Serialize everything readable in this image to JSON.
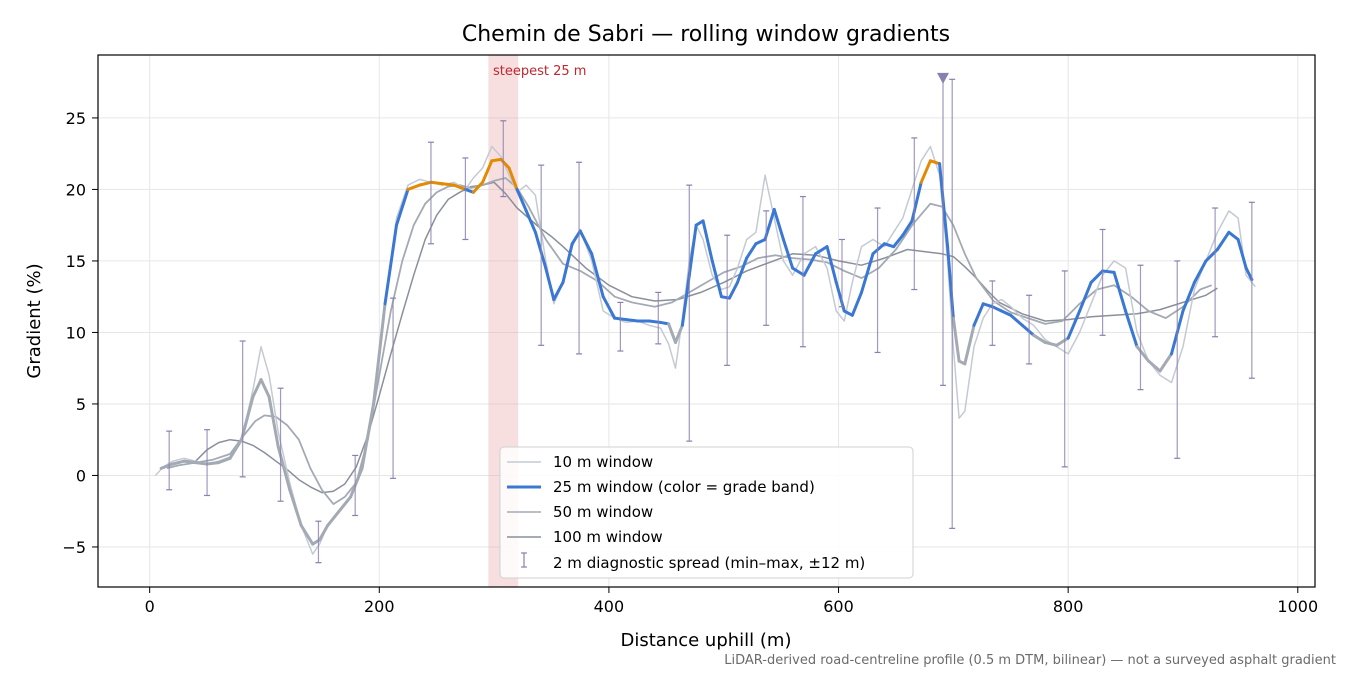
{
  "chart_data": {
    "type": "line",
    "title": "Chemin de Sabri — rolling window gradients",
    "xlabel": "Distance uphill (m)",
    "ylabel": "Gradient (%)",
    "xlim": [
      -45,
      1015
    ],
    "ylim": [
      -7.8,
      29.4
    ],
    "xticks": [
      0,
      200,
      400,
      600,
      800,
      1000
    ],
    "yticks": [
      -5,
      0,
      5,
      10,
      15,
      20,
      25
    ],
    "ytick_labels": [
      "−5",
      "0",
      "5",
      "10",
      "15",
      "20",
      "25"
    ],
    "grid": true,
    "legend_position": "lower-center",
    "footnote": "LiDAR-derived road-centreline profile (0.5 m DTM, bilinear) — not a surveyed asphalt gradient",
    "highlight": {
      "label": "steepest 25 m",
      "x_range": [
        295,
        321
      ],
      "color": "#e8a0a3"
    },
    "off_scale_marker": {
      "x": 691,
      "y": 27.8,
      "color": "#8a7fae"
    },
    "grade_band_colors": {
      "under_10": "#a3aab4",
      "10_to_20": "#3a78d4",
      "over_20": "#e28a00"
    },
    "series": [
      {
        "name": "10 m window",
        "color": "#c4cad3",
        "width": 1.5,
        "x": [
          5,
          12,
          20,
          30,
          40,
          50,
          60,
          70,
          80,
          90,
          97,
          104,
          112,
          122,
          132,
          142,
          148,
          155,
          165,
          175,
          185,
          195,
          205,
          215,
          225,
          235,
          245,
          255,
          265,
          275,
          282,
          290,
          298,
          306,
          313,
          320,
          328,
          336,
          345,
          352,
          360,
          368,
          375,
          385,
          395,
          405,
          415,
          425,
          435,
          445,
          452,
          458,
          464,
          470,
          476,
          482,
          490,
          498,
          505,
          512,
          520,
          528,
          536,
          544,
          552,
          560,
          570,
          580,
          590,
          598,
          605,
          612,
          620,
          630,
          640,
          648,
          656,
          664,
          672,
          680,
          688,
          695,
          700,
          705,
          710,
          718,
          726,
          734,
          742,
          750,
          760,
          770,
          780,
          790,
          800,
          810,
          820,
          830,
          840,
          850,
          860,
          870,
          880,
          890,
          900,
          910,
          920,
          930,
          940,
          948,
          955,
          963
        ],
        "y": [
          0,
          0.6,
          1,
          1.2,
          1,
          0.8,
          1.0,
          1.3,
          2.5,
          6,
          9.0,
          7,
          3,
          -0.5,
          -3.5,
          -5.5,
          -4.8,
          -3.5,
          -2.5,
          -1.5,
          0.5,
          5,
          12,
          18,
          20.3,
          20.7,
          20.5,
          20.3,
          20.5,
          20,
          20.8,
          21.5,
          23,
          22.3,
          21,
          19.8,
          20.3,
          19.6,
          15,
          12,
          13.5,
          16,
          17.2,
          15,
          11.5,
          11,
          10.7,
          10.8,
          10.5,
          10.3,
          9.2,
          7.5,
          11,
          15,
          17.5,
          16.5,
          14,
          13,
          13.2,
          14.5,
          16.5,
          17,
          21,
          18,
          15,
          14,
          15.5,
          16,
          14.5,
          11.5,
          10.8,
          13.5,
          16,
          16.5,
          16,
          17,
          18,
          20,
          22,
          23,
          21,
          15,
          9,
          4,
          4.5,
          9,
          11,
          12,
          12.3,
          11.8,
          11,
          10.5,
          9.5,
          9,
          8.5,
          10,
          12,
          14,
          15,
          14.5,
          10,
          8,
          7,
          6.5,
          9,
          13,
          15,
          17,
          18.5,
          18,
          14,
          13.2
        ],
        "opacity": 1
      },
      {
        "name": "25 m window (color = grade band)",
        "color": "#3a78d4",
        "width": 3,
        "x": [
          10,
          20,
          30,
          40,
          50,
          60,
          70,
          80,
          90,
          97,
          104,
          112,
          122,
          132,
          142,
          148,
          155,
          165,
          175,
          185,
          195,
          205,
          215,
          225,
          235,
          245,
          255,
          265,
          275,
          282,
          290,
          298,
          306,
          313,
          320,
          328,
          336,
          345,
          352,
          360,
          368,
          375,
          385,
          395,
          405,
          415,
          425,
          435,
          445,
          452,
          458,
          464,
          470,
          476,
          482,
          490,
          498,
          505,
          512,
          520,
          528,
          536,
          544,
          552,
          560,
          570,
          580,
          590,
          598,
          605,
          612,
          620,
          630,
          640,
          648,
          656,
          664,
          672,
          680,
          688,
          695,
          700,
          705,
          710,
          718,
          726,
          734,
          742,
          750,
          760,
          770,
          780,
          790,
          800,
          810,
          820,
          830,
          840,
          850,
          860,
          870,
          880,
          890,
          900,
          910,
          920,
          930,
          940,
          948,
          955,
          960
        ],
        "y": [
          0.5,
          0.8,
          1,
          0.9,
          0.8,
          0.9,
          1.2,
          2.5,
          5.5,
          6.7,
          5.5,
          2,
          -1,
          -3.5,
          -4.8,
          -4.5,
          -3.5,
          -2.5,
          -1.5,
          0.5,
          5,
          12,
          17.5,
          20,
          20.3,
          20.5,
          20.4,
          20.3,
          20,
          19.8,
          20.5,
          22,
          22.1,
          21.5,
          20,
          18.5,
          17,
          14.5,
          12.3,
          13.5,
          16.2,
          17.1,
          15.5,
          12.5,
          11,
          10.9,
          10.8,
          10.8,
          10.7,
          10.6,
          9.3,
          10.5,
          14,
          17.5,
          17.8,
          15,
          12.5,
          12.4,
          13.5,
          15.2,
          16.2,
          16.5,
          18.6,
          16.5,
          14.5,
          14,
          15.5,
          16,
          13.5,
          11.5,
          11.2,
          12.8,
          15.5,
          16.2,
          16,
          16.8,
          17.8,
          20.5,
          22,
          21.8,
          16,
          11,
          8,
          7.8,
          10.5,
          12,
          11.8,
          11.5,
          11.2,
          10.5,
          9.8,
          9.3,
          9.1,
          9.6,
          11.5,
          13.5,
          14.3,
          14.2,
          11.5,
          9,
          8,
          7.3,
          8.5,
          11.5,
          13.5,
          15,
          15.8,
          17,
          16.5,
          14.5,
          13.7
        ],
        "opacity": 1
      },
      {
        "name": "50 m window",
        "color": "#a3aab4",
        "width": 1.8,
        "x": [
          15,
          25,
          40,
          55,
          70,
          82,
          92,
          100,
          110,
          120,
          130,
          140,
          150,
          160,
          170,
          180,
          190,
          200,
          210,
          220,
          230,
          240,
          250,
          260,
          270,
          280,
          290,
          300,
          310,
          320,
          330,
          345,
          360,
          375,
          390,
          405,
          420,
          440,
          455,
          470,
          485,
          500,
          515,
          530,
          545,
          560,
          575,
          590,
          605,
          620,
          635,
          650,
          665,
          680,
          690,
          700,
          710,
          720,
          735,
          750,
          765,
          780,
          795,
          810,
          825,
          840,
          855,
          870,
          885,
          900,
          915,
          925
        ],
        "y": [
          0.5,
          0.7,
          0.9,
          1.1,
          1.5,
          2.8,
          3.8,
          4.2,
          4.1,
          3.5,
          2.5,
          0.5,
          -1,
          -2,
          -1.5,
          -0.5,
          2.5,
          7,
          11.5,
          15,
          17.5,
          19,
          19.8,
          20.2,
          20.3,
          20.1,
          20.3,
          20.6,
          20.8,
          20.1,
          18.8,
          16.5,
          14.8,
          14.3,
          13.6,
          12.5,
          12.1,
          11.8,
          12.1,
          12.8,
          13.5,
          14.2,
          14.6,
          15.2,
          15.4,
          15.2,
          15.1,
          14.9,
          14.3,
          13.8,
          14.5,
          15.8,
          17.6,
          19,
          18.8,
          17.5,
          15.5,
          13.8,
          12.2,
          11.4,
          11,
          10.6,
          10.8,
          12,
          13,
          13.3,
          12.5,
          11.5,
          11,
          11.8,
          13,
          13.3
        ],
        "opacity": 1
      },
      {
        "name": "100 m window",
        "color": "#8a8f9a",
        "width": 1.5,
        "x": [
          40,
          50,
          60,
          70,
          80,
          90,
          100,
          110,
          120,
          130,
          140,
          150,
          160,
          170,
          180,
          190,
          200,
          210,
          220,
          230,
          240,
          250,
          260,
          270,
          280,
          290,
          300,
          310,
          320,
          330,
          340,
          350,
          360,
          380,
          400,
          420,
          440,
          460,
          480,
          500,
          520,
          540,
          560,
          580,
          600,
          620,
          640,
          660,
          680,
          690,
          700,
          710,
          720,
          730,
          740,
          760,
          780,
          800,
          820,
          840,
          860,
          880,
          900,
          920,
          930
        ],
        "y": [
          1.0,
          1.8,
          2.3,
          2.5,
          2.4,
          2.1,
          1.6,
          1.0,
          0.4,
          -0.3,
          -0.8,
          -1.2,
          -1.1,
          -0.6,
          0.6,
          2.8,
          5.6,
          8.5,
          11.3,
          14,
          16.5,
          18.2,
          19.3,
          19.8,
          20.2,
          20.3,
          20.5,
          19.7,
          18.7,
          18,
          17.3,
          16.7,
          16,
          14.5,
          13.3,
          12.5,
          12.2,
          12.3,
          12.8,
          13.5,
          14.3,
          14.9,
          15.5,
          15.4,
          15.0,
          14.7,
          15.2,
          15.8,
          15.6,
          15.5,
          15.3,
          14.6,
          13.8,
          12.9,
          12.1,
          11.3,
          10.8,
          10.9,
          11.1,
          11.2,
          11.3,
          11.6,
          12.1,
          12.6,
          13.1
        ],
        "opacity": 1
      }
    ],
    "diagnostic_spread": {
      "name": "2 m diagnostic spread (min–max, ±12 m)",
      "color": "#8a7fae",
      "points": [
        {
          "x": 17,
          "low": -1.0,
          "high": 3.1
        },
        {
          "x": 50,
          "low": -1.4,
          "high": 3.2
        },
        {
          "x": 81,
          "low": -0.1,
          "high": 9.4
        },
        {
          "x": 114,
          "low": -1.8,
          "high": 6.1
        },
        {
          "x": 147,
          "low": -6.1,
          "high": -3.2
        },
        {
          "x": 179,
          "low": -2.8,
          "high": 1.4
        },
        {
          "x": 212,
          "low": -0.2,
          "high": 12.4
        },
        {
          "x": 245,
          "low": 16.2,
          "high": 23.3
        },
        {
          "x": 275,
          "low": 16.5,
          "high": 22.2
        },
        {
          "x": 308,
          "low": 19.5,
          "high": 24.8
        },
        {
          "x": 341,
          "low": 9.1,
          "high": 21.7
        },
        {
          "x": 374,
          "low": 8.5,
          "high": 21.9
        },
        {
          "x": 410,
          "low": 8.7,
          "high": 12.1
        },
        {
          "x": 443,
          "low": 9.2,
          "high": 12.8
        },
        {
          "x": 470,
          "low": 2.4,
          "high": 20.3
        },
        {
          "x": 503,
          "low": 7.7,
          "high": 16.8
        },
        {
          "x": 537,
          "low": 10.5,
          "high": 18.5
        },
        {
          "x": 569,
          "low": 9.0,
          "high": 19.5
        },
        {
          "x": 603,
          "low": 11.8,
          "high": 16.5
        },
        {
          "x": 634,
          "low": 8.6,
          "high": 18.7
        },
        {
          "x": 666,
          "low": 13.0,
          "high": 23.6
        },
        {
          "x": 691,
          "low": 6.3,
          "high": 27.8
        },
        {
          "x": 699,
          "low": -3.7,
          "high": 27.7
        },
        {
          "x": 734,
          "low": 9.1,
          "high": 13.6
        },
        {
          "x": 766,
          "low": 7.8,
          "high": 12.6
        },
        {
          "x": 797,
          "low": 0.6,
          "high": 14.3
        },
        {
          "x": 830,
          "low": 9.8,
          "high": 17.2
        },
        {
          "x": 863,
          "low": 6.0,
          "high": 14.7
        },
        {
          "x": 895,
          "low": 1.2,
          "high": 15.0
        },
        {
          "x": 928,
          "low": 9.7,
          "high": 18.7
        },
        {
          "x": 960,
          "low": 6.8,
          "high": 19.1
        }
      ]
    }
  }
}
